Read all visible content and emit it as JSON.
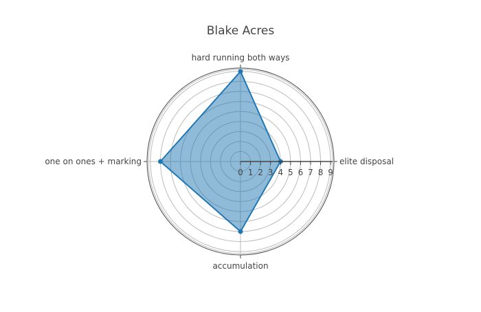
{
  "chart_data": {
    "type": "radar",
    "title": "Blake Acres",
    "categories": [
      "elite disposal",
      "hard running both ways",
      "one on ones + marking",
      "accumulation"
    ],
    "series": [
      {
        "values": [
          4,
          9,
          8,
          7
        ],
        "color": "#1f77b4",
        "fill": "rgba(31,119,180,0.5)"
      }
    ],
    "radial_range": [
      0,
      9.2
    ],
    "radial_ticks": [
      0,
      1,
      2,
      3,
      4,
      5,
      6,
      7,
      8,
      9
    ],
    "grid": true
  }
}
